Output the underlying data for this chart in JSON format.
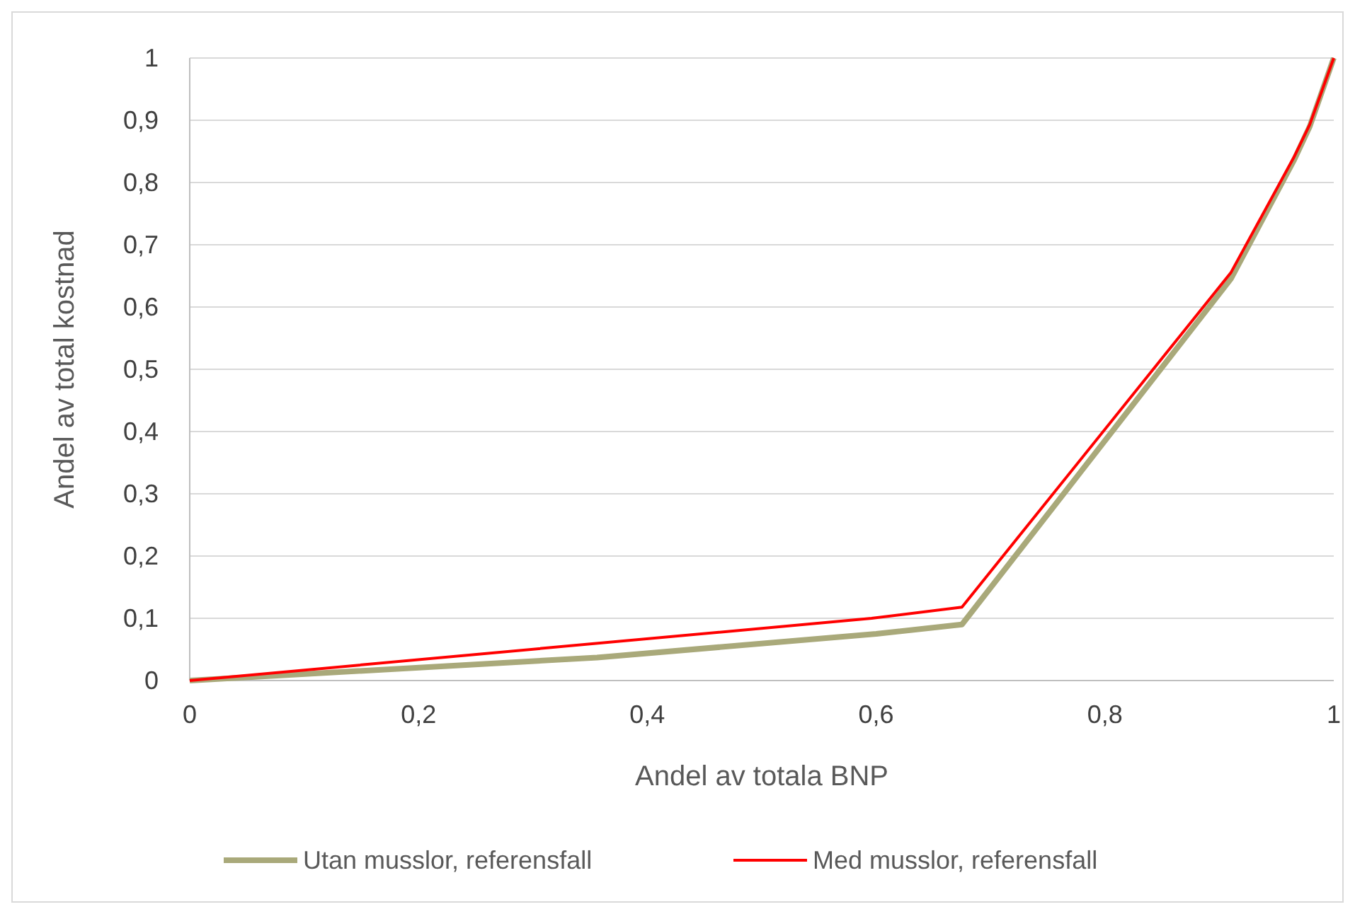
{
  "chart_data": {
    "type": "line",
    "xlabel": "Andel av totala BNP",
    "ylabel": "Andel av total kostnad",
    "xlim": [
      0,
      1
    ],
    "xticks": [
      0,
      {
        "value": 0.2,
        "label": "0,2"
      },
      {
        "value": 0.4,
        "label": "0,4"
      },
      {
        "value": 0.6,
        "label": "0,6"
      },
      {
        "value": 0.8,
        "label": "0,8"
      },
      1
    ],
    "ylim": [
      0,
      1
    ],
    "yticks": [
      0,
      {
        "value": 0.1,
        "label": "0,1"
      },
      {
        "value": 0.2,
        "label": "0,2"
      },
      {
        "value": 0.3,
        "label": "0,3"
      },
      {
        "value": 0.4,
        "label": "0,4"
      },
      {
        "value": 0.5,
        "label": "0,5"
      },
      {
        "value": 0.6,
        "label": "0,6"
      },
      {
        "value": 0.7,
        "label": "0,7"
      },
      {
        "value": 0.8,
        "label": "0,8"
      },
      {
        "value": 0.9,
        "label": "0,9"
      },
      1
    ],
    "grid": "y",
    "legend": "bottom",
    "marker": "none",
    "line_style": "solid",
    "series": [
      {
        "name": "Utan musslor, referensfall",
        "color": "#a9a97a",
        "x": [
          0,
          0.356,
          0.6,
          0.675,
          0.91,
          0.965,
          0.979,
          1
        ],
        "values": [
          0,
          0.037,
          0.075,
          0.09,
          0.645,
          0.835,
          0.89,
          1
        ]
      },
      {
        "name": "Med musslor, referensfall",
        "color": "#ff0000",
        "x": [
          0,
          0.596,
          0.675,
          0.91,
          0.965,
          0.979,
          1
        ],
        "values": [
          0,
          0.1,
          0.118,
          0.655,
          0.84,
          0.893,
          1
        ]
      }
    ]
  }
}
